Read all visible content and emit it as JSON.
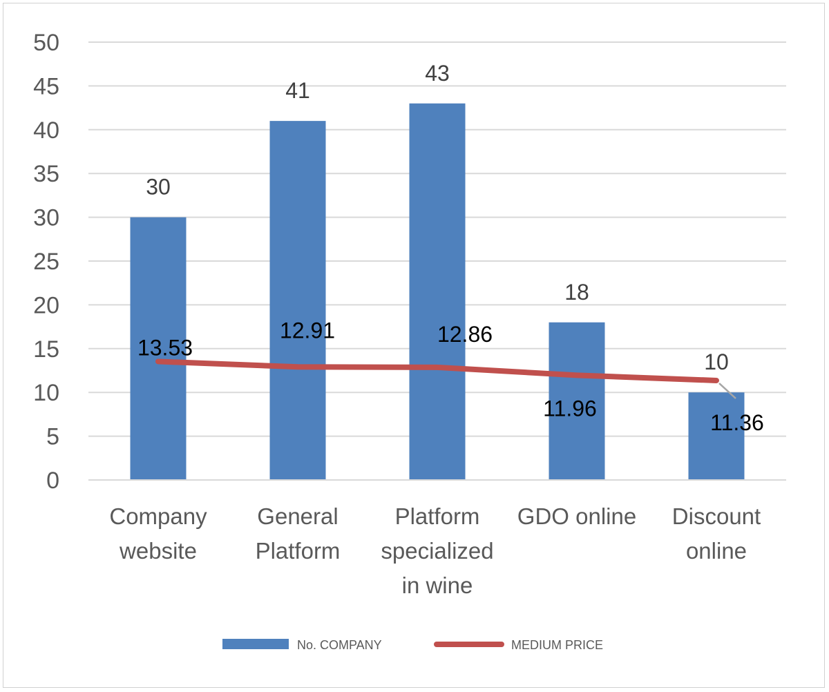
{
  "chart_data": {
    "type": "bar",
    "categories": [
      [
        "Company",
        "website"
      ],
      [
        "General",
        "Platform"
      ],
      [
        "Platform",
        "specialized",
        "in wine"
      ],
      [
        "GDO online"
      ],
      [
        "Discount",
        "online"
      ]
    ],
    "series": [
      {
        "name": "No. COMPANY",
        "type": "bar",
        "values": [
          30,
          41,
          43,
          18,
          10
        ],
        "labels": [
          "30",
          "41",
          "43",
          "18",
          "10"
        ],
        "color": "#4f81bd"
      },
      {
        "name": "MEDIUM PRICE",
        "type": "line",
        "values": [
          13.53,
          12.91,
          12.86,
          11.96,
          11.36
        ],
        "labels": [
          "13.53",
          "12.91",
          "12.86",
          "11.96",
          "11.36"
        ],
        "color": "#c0504d"
      }
    ],
    "ylim": [
      0,
      50
    ],
    "yticks": [
      "0",
      "5",
      "10",
      "15",
      "20",
      "25",
      "30",
      "35",
      "40",
      "45",
      "50"
    ],
    "grid": true,
    "legend_position": "bottom"
  }
}
